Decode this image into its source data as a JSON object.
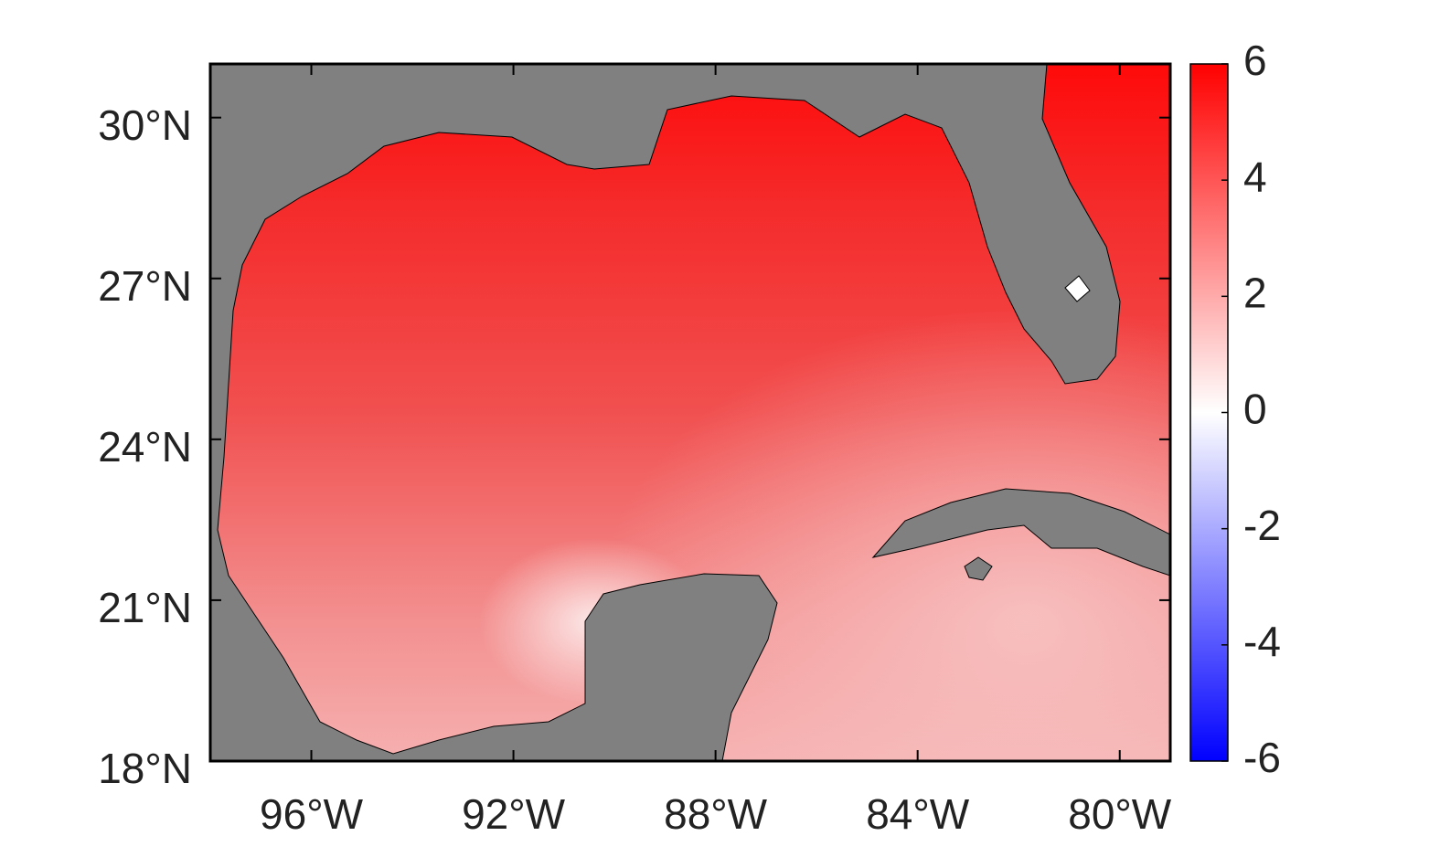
{
  "chart_data": {
    "type": "map",
    "xlim": [
      -98,
      -79
    ],
    "ylim": [
      18,
      31
    ],
    "xticks": [
      {
        "value": -96,
        "label": "96°W"
      },
      {
        "value": -92,
        "label": "92°W"
      },
      {
        "value": -88,
        "label": "88°W"
      },
      {
        "value": -84,
        "label": "84°W"
      },
      {
        "value": -80,
        "label": "80°W"
      }
    ],
    "yticks": [
      {
        "value": 18,
        "label": "18°N"
      },
      {
        "value": 21,
        "label": "21°N"
      },
      {
        "value": 24,
        "label": "24°N"
      },
      {
        "value": 27,
        "label": "27°N"
      },
      {
        "value": 30,
        "label": "30°N"
      }
    ],
    "colorbar": {
      "clim": [
        -6,
        6
      ],
      "ticks": [
        -6,
        -4,
        -2,
        0,
        2,
        4,
        6
      ],
      "colors": [
        "#0000ff",
        "#ffffff",
        "#ff0000"
      ]
    }
  }
}
